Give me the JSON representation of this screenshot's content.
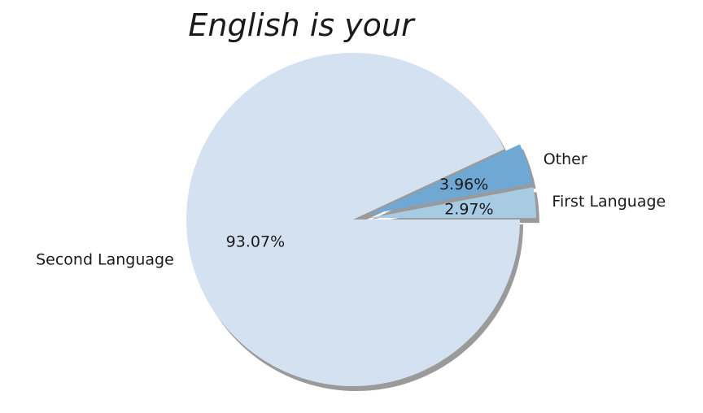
{
  "chart_data": {
    "type": "pie",
    "title": "English is your",
    "slices": [
      {
        "label": "First Language",
        "value": 2.97,
        "pct_label": "2.97%",
        "color": "#a6cbe3",
        "explode": true
      },
      {
        "label": "Other",
        "value": 3.96,
        "pct_label": "3.96%",
        "color": "#6fa8d3",
        "explode": true
      },
      {
        "label": "Second Language",
        "value": 93.07,
        "pct_label": "93.07%",
        "color": "#d4e1f1",
        "explode": false
      }
    ],
    "shadow": true,
    "legend": "none"
  }
}
